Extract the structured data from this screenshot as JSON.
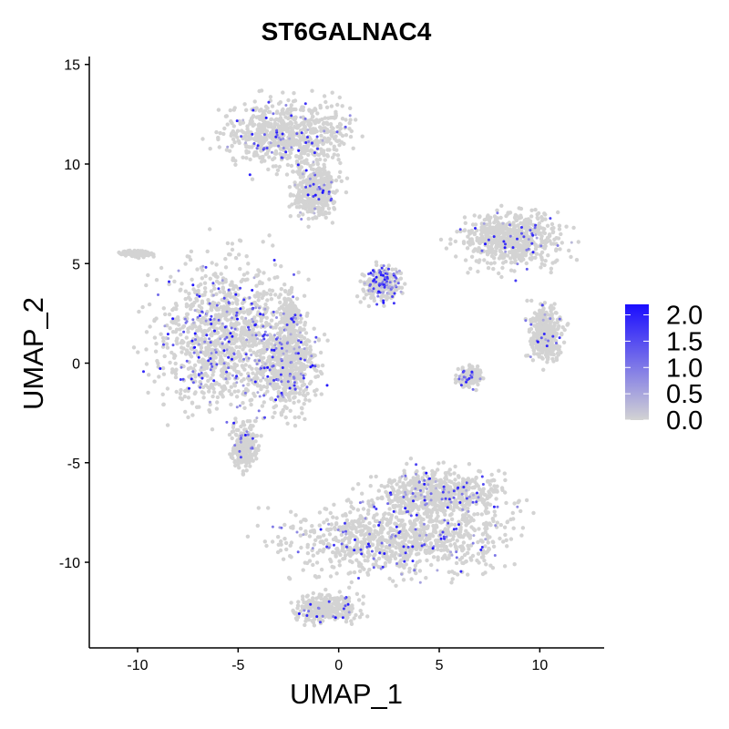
{
  "chart_data": {
    "type": "scatter",
    "title": "ST6GALNAC4",
    "xlabel": "UMAP_1",
    "ylabel": "UMAP_2",
    "xlim": [
      -12.4,
      13.2
    ],
    "ylim": [
      -14.3,
      15.4
    ],
    "x_ticks": [
      "-10",
      "-5",
      "0",
      "5",
      "10"
    ],
    "y_ticks": [
      "-10",
      "-5",
      "0",
      "5",
      "10",
      "15"
    ],
    "grid": false,
    "legend": {
      "placement": "right",
      "type": "colorbar",
      "labels": [
        "2.0",
        "1.5",
        "1.0",
        "0.5",
        "0.0"
      ],
      "range": [
        0.0,
        2.2
      ],
      "low_color": "#d3d3d3",
      "high_color": "#1a0dff"
    },
    "clusters": [
      {
        "center": [
          -2.6,
          11.5
        ],
        "spread": [
          2.8,
          1.4
        ],
        "expression": 0.15
      },
      {
        "center": [
          -1.2,
          8.6
        ],
        "spread": [
          1.0,
          1.2
        ],
        "expression": 0.12
      },
      {
        "center": [
          -5.5,
          1.3
        ],
        "spread": [
          3.0,
          3.3
        ],
        "expression": 0.3
      },
      {
        "center": [
          -2.5,
          0.0
        ],
        "spread": [
          1.2,
          2.0
        ],
        "expression": 0.25
      },
      {
        "center": [
          2.2,
          4.0
        ],
        "spread": [
          0.8,
          0.7
        ],
        "expression": 0.55
      },
      {
        "center": [
          -2.4,
          2.3
        ],
        "spread": [
          0.3,
          0.8
        ],
        "expression": 0.1
      },
      {
        "center": [
          -4.7,
          -4.2
        ],
        "spread": [
          0.5,
          0.9
        ],
        "expression": 0.12
      },
      {
        "center": [
          3.0,
          -8.8
        ],
        "spread": [
          4.7,
          1.5
        ],
        "expression": 0.18
      },
      {
        "center": [
          5.0,
          -6.5
        ],
        "spread": [
          2.8,
          1.0
        ],
        "expression": 0.2
      },
      {
        "center": [
          -0.5,
          -12.3
        ],
        "spread": [
          1.3,
          0.6
        ],
        "expression": 0.1
      },
      {
        "center": [
          8.6,
          6.2
        ],
        "spread": [
          2.2,
          1.2
        ],
        "expression": 0.15
      },
      {
        "center": [
          10.3,
          1.5
        ],
        "spread": [
          0.7,
          1.2
        ],
        "expression": 0.1
      },
      {
        "center": [
          6.5,
          -0.7
        ],
        "spread": [
          0.5,
          0.4
        ],
        "expression": 0.2
      },
      {
        "center": [
          -10.0,
          5.5
        ],
        "spread": [
          0.7,
          0.15
        ],
        "expression": 0.0
      }
    ]
  }
}
